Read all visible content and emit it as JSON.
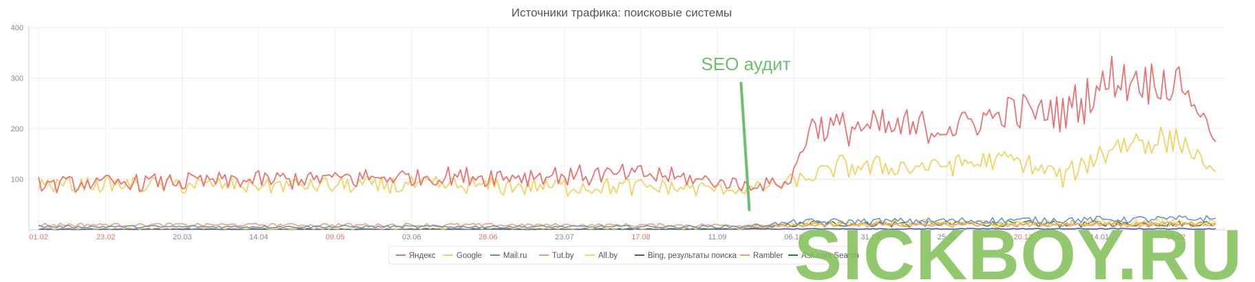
{
  "chart_data": {
    "type": "line",
    "title": "Источники трафика: поисковые системы",
    "ylim": [
      0,
      400
    ],
    "yticks": [
      400,
      300,
      200,
      100
    ],
    "xticks": [
      {
        "label": "01.02",
        "index": 0,
        "highlight": true
      },
      {
        "label": "23.02",
        "index": 22,
        "highlight": true
      },
      {
        "label": "20.03",
        "index": 47,
        "highlight": false
      },
      {
        "label": "14.04",
        "index": 72,
        "highlight": false
      },
      {
        "label": "09.05",
        "index": 97,
        "highlight": true
      },
      {
        "label": "03.06",
        "index": 122,
        "highlight": false
      },
      {
        "label": "28.06",
        "index": 147,
        "highlight": true
      },
      {
        "label": "23.07",
        "index": 172,
        "highlight": false
      },
      {
        "label": "17.08",
        "index": 197,
        "highlight": true
      },
      {
        "label": "11.09",
        "index": 222,
        "highlight": false
      },
      {
        "label": "06.10",
        "index": 247,
        "highlight": false
      },
      {
        "label": "31.10",
        "index": 272,
        "highlight": false
      },
      {
        "label": "25.11",
        "index": 297,
        "highlight": false
      },
      {
        "label": "20.12",
        "index": 322,
        "highlight": true
      },
      {
        "label": "14.01",
        "index": 347,
        "highlight": false
      },
      {
        "label": "08.02",
        "index": 372,
        "highlight": true
      }
    ],
    "num_points": 386,
    "legend_position": "bottom-center",
    "grid": true,
    "annotations": [
      {
        "text": "SEO аудит",
        "x_index": 232,
        "color": "#6dbf6d"
      }
    ],
    "series": [
      {
        "name": "Яндекс",
        "color": "#ee6b6b",
        "segments": [
          [
            0,
            90,
            0.16
          ],
          [
            120,
            105,
            0.18
          ],
          [
            200,
            110,
            0.18
          ],
          [
            232,
            88,
            0.14
          ],
          [
            246,
            95,
            0.12
          ],
          [
            252,
            205,
            0.12
          ],
          [
            285,
            200,
            0.2
          ],
          [
            300,
            205,
            0.12
          ],
          [
            318,
            235,
            0.14
          ],
          [
            336,
            235,
            0.17
          ],
          [
            352,
            305,
            0.16
          ],
          [
            365,
            295,
            0.14
          ],
          [
            374,
            290,
            0.1
          ],
          [
            385,
            180,
            0.05
          ]
        ]
      },
      {
        "name": "Google",
        "color": "#f5cf5a",
        "segments": [
          [
            0,
            90,
            0.15
          ],
          [
            120,
            88,
            0.2
          ],
          [
            200,
            85,
            0.2
          ],
          [
            232,
            80,
            0.15
          ],
          [
            250,
            100,
            0.15
          ],
          [
            262,
            125,
            0.18
          ],
          [
            290,
            125,
            0.15
          ],
          [
            318,
            140,
            0.15
          ],
          [
            336,
            105,
            0.2
          ],
          [
            352,
            170,
            0.18
          ],
          [
            365,
            180,
            0.17
          ],
          [
            374,
            175,
            0.15
          ],
          [
            385,
            110,
            0.05
          ]
        ]
      },
      {
        "name": "Mail.ru",
        "color": "#5b8fd6",
        "segments": [
          [
            0,
            6,
            0.4
          ],
          [
            230,
            6,
            0.4
          ],
          [
            250,
            16,
            0.35
          ],
          [
            385,
            22,
            0.3
          ]
        ]
      },
      {
        "name": "Tut.by",
        "color": "#f29a6a",
        "segments": [
          [
            0,
            10,
            0.35
          ],
          [
            230,
            9,
            0.35
          ],
          [
            250,
            10,
            0.35
          ],
          [
            385,
            12,
            0.35
          ]
        ]
      },
      {
        "name": "All.by",
        "color": "#eddc5a",
        "segments": [
          [
            0,
            3,
            0.5
          ],
          [
            230,
            3,
            0.5
          ],
          [
            250,
            13,
            0.45
          ],
          [
            385,
            16,
            0.45
          ]
        ]
      },
      {
        "name": "Bing, результаты поиска",
        "color": "#4b4fbd",
        "segments": [
          [
            0,
            1,
            0.5
          ],
          [
            385,
            2,
            0.5
          ]
        ]
      },
      {
        "name": "Rambler",
        "color": "#eea84a",
        "segments": [
          [
            0,
            2,
            0.5
          ],
          [
            230,
            2,
            0.5
          ],
          [
            250,
            10,
            0.5
          ],
          [
            385,
            11,
            0.5
          ]
        ]
      },
      {
        "name": "Ask.com Search",
        "color": "#2f7f2f",
        "segments": [
          [
            0,
            1,
            0.4
          ],
          [
            230,
            1,
            0.4
          ],
          [
            252,
            12,
            0.5
          ],
          [
            385,
            12,
            0.5
          ]
        ]
      }
    ]
  },
  "watermark": {
    "text": "SICKBOY.RU"
  }
}
